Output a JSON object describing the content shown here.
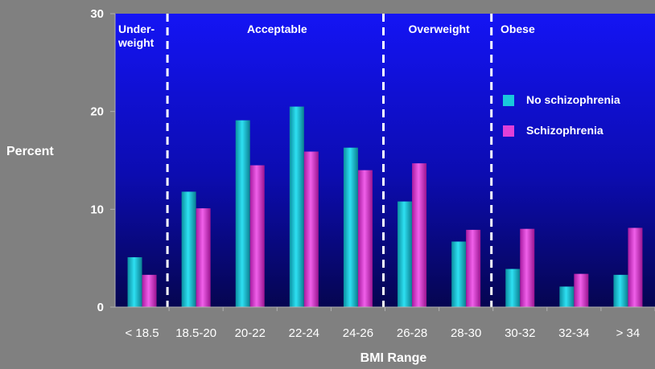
{
  "chart_data": {
    "type": "bar",
    "title": "",
    "xlabel": "BMI Range",
    "ylabel": "Percent",
    "ylim": [
      0,
      30
    ],
    "yticks": [
      0,
      10,
      20,
      30
    ],
    "categories": [
      "< 18.5",
      "18.5-20",
      "20-22",
      "22-24",
      "24-26",
      "26-28",
      "28-30",
      "30-32",
      "32-34",
      "> 34"
    ],
    "series": [
      {
        "name": "No schizophrenia",
        "color": "#19c8dc",
        "values": [
          5.1,
          11.8,
          19.1,
          20.5,
          16.3,
          10.8,
          6.7,
          3.9,
          2.1,
          3.3
        ]
      },
      {
        "name": "Schizophrenia",
        "color": "#e040d8",
        "values": [
          3.3,
          10.1,
          14.5,
          15.9,
          14.0,
          14.7,
          7.9,
          8.0,
          3.4,
          8.1
        ]
      }
    ],
    "regions": [
      {
        "label_lines": [
          "Under-",
          "weight"
        ],
        "start_index": 0,
        "end_index": 0
      },
      {
        "label_lines": [
          "Acceptable"
        ],
        "start_index": 1,
        "end_index": 4
      },
      {
        "label_lines": [
          "Overweight"
        ],
        "start_index": 5,
        "end_index": 6
      },
      {
        "label_lines": [
          "Obese"
        ],
        "start_index": 7,
        "end_index": 9
      }
    ],
    "region_dividers_after_index": [
      0,
      4,
      6
    ],
    "legend_position": "right",
    "grid": false
  }
}
